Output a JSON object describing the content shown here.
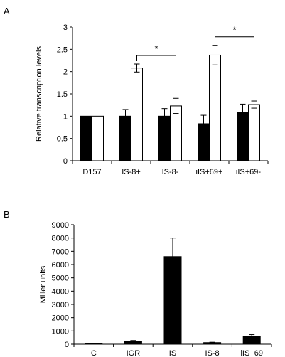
{
  "panels": {
    "a_label": "A",
    "b_label": "B"
  },
  "chart_data": [
    {
      "type": "bar",
      "panel": "A",
      "ylabel": "Relative transcription levels",
      "xlabel": "",
      "ylim": [
        0,
        3
      ],
      "yticks": [
        0,
        0.5,
        1,
        1.5,
        2,
        2.5,
        3
      ],
      "ytick_labels": [
        "0",
        "0.5",
        "1",
        "1.5",
        "2",
        "2.5",
        "3"
      ],
      "categories": [
        "D157",
        "IS-8+",
        "IS-8-",
        "iIS+69+",
        "iIS+69-"
      ],
      "series": [
        {
          "color": "#000000",
          "values": [
            1.0,
            1.0,
            1.0,
            0.83,
            1.08
          ],
          "errors": [
            0,
            0.15,
            0.17,
            0.19,
            0.19
          ]
        },
        {
          "color": "#ffffff",
          "values": [
            1.0,
            2.08,
            1.23,
            2.37,
            1.26
          ],
          "errors": [
            0,
            0.09,
            0.17,
            0.22,
            0.08
          ]
        }
      ],
      "significance": [
        {
          "from_category": 1,
          "to_category": 2,
          "label": "*"
        },
        {
          "from_category": 3,
          "to_category": 4,
          "label": "*"
        }
      ],
      "grid": false,
      "legend": "none"
    },
    {
      "type": "bar",
      "panel": "B",
      "ylabel": "Miller units",
      "xlabel": "",
      "ylim": [
        0,
        9000
      ],
      "yticks": [
        0,
        1000,
        2000,
        3000,
        4000,
        5000,
        6000,
        7000,
        8000,
        9000
      ],
      "ytick_labels": [
        "0",
        "1000",
        "2000",
        "3000",
        "4000",
        "5000",
        "6000",
        "7000",
        "8000",
        "9000"
      ],
      "categories": [
        "C",
        "IGR",
        "IS",
        "IS-8",
        "iIS+69"
      ],
      "series": [
        {
          "color": "#000000",
          "values": [
            30,
            220,
            6600,
            120,
            580
          ],
          "errors": [
            10,
            60,
            1400,
            30,
            140
          ]
        }
      ],
      "grid": false,
      "legend": "none"
    }
  ]
}
